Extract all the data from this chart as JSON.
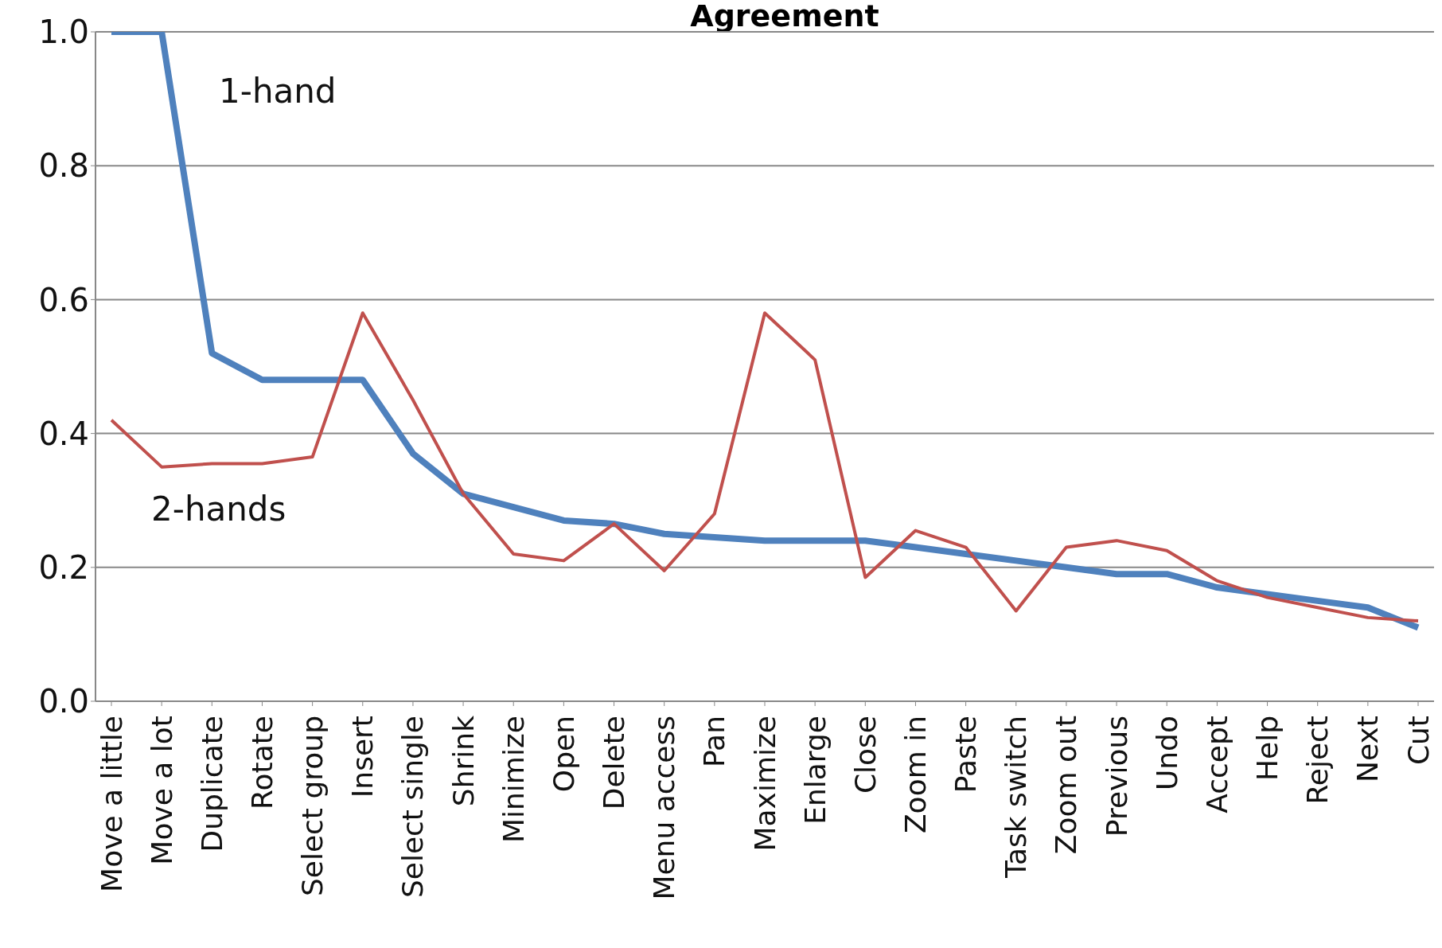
{
  "chart_data": {
    "type": "line",
    "title": "Agreement",
    "categories": [
      "Move a little",
      "Move a lot",
      "Duplicate",
      "Rotate",
      "Select group",
      "Insert",
      "Select single",
      "Shrink",
      "Minimize",
      "Open",
      "Delete",
      "Menu access",
      "Pan",
      "Maximize",
      "Enlarge",
      "Close",
      "Zoom in",
      "Paste",
      "Task switch",
      "Zoom out",
      "Previous",
      "Undo",
      "Accept",
      "Help",
      "Reject",
      "Next",
      "Cut"
    ],
    "series": [
      {
        "name": "1-hand",
        "color": "#4f81bd",
        "values": [
          1.0,
          1.0,
          0.52,
          0.48,
          0.48,
          0.48,
          0.37,
          0.31,
          0.29,
          0.27,
          0.265,
          0.25,
          0.245,
          0.24,
          0.24,
          0.24,
          0.23,
          0.22,
          0.21,
          0.2,
          0.19,
          0.19,
          0.17,
          0.16,
          0.15,
          0.14,
          0.11
        ]
      },
      {
        "name": "2-hands",
        "color": "#c0504d",
        "values": [
          0.42,
          0.35,
          0.355,
          0.355,
          0.365,
          0.58,
          0.45,
          0.31,
          0.22,
          0.21,
          0.265,
          0.195,
          0.28,
          0.58,
          0.51,
          0.185,
          0.255,
          0.23,
          0.135,
          0.23,
          0.24,
          0.225,
          0.18,
          0.155,
          0.14,
          0.125,
          0.12
        ]
      }
    ],
    "ylim": [
      0,
      1
    ],
    "yticks": [
      {
        "value": 0,
        "label": "0.0"
      },
      {
        "value": 0.2,
        "label": "0.2"
      },
      {
        "value": 0.4,
        "label": "0.4"
      },
      {
        "value": 0.6,
        "label": "0.6"
      },
      {
        "value": 0.8,
        "label": "0.8"
      },
      {
        "value": 1,
        "label": "1.0"
      }
    ],
    "grid": "y",
    "legend": false,
    "marker": "none",
    "line_style": "solid"
  }
}
